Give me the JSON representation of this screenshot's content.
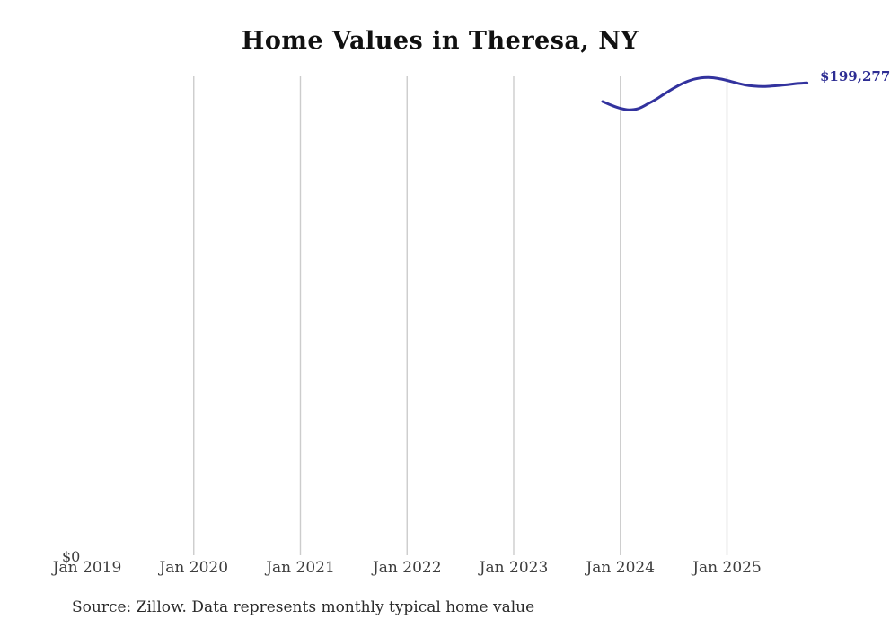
{
  "chart": {
    "title": "Home Values in Theresa, NY",
    "y_zero_label": "$0",
    "end_label": "$199,277",
    "source": "Source: Zillow. Data represents monthly typical home value",
    "colors": {
      "line": "#32329e",
      "end_label": "#2d2d93",
      "gridline": "#cccccc",
      "title": "#111111",
      "tick_text": "#3d3d3d",
      "background": "#ffffff"
    }
  },
  "chart_data": {
    "type": "line",
    "title": "Home Values in Theresa, NY",
    "xlabel": "",
    "ylabel": "",
    "ylim": [
      0,
      202000
    ],
    "grid": "vertical-only",
    "legend": "none",
    "y_axis_labels": [
      "$0"
    ],
    "end_label": "$199,277",
    "source": "Source: Zillow. Data represents monthly typical home value",
    "x_ticks": [
      {
        "label": "Jan 2019",
        "gridline": false
      },
      {
        "label": "Jan 2020",
        "gridline": true
      },
      {
        "label": "Jan 2021",
        "gridline": true
      },
      {
        "label": "Jan 2022",
        "gridline": true
      },
      {
        "label": "Jan 2023",
        "gridline": true
      },
      {
        "label": "Jan 2024",
        "gridline": true
      },
      {
        "label": "Jan 2025",
        "gridline": true
      }
    ],
    "series": [
      {
        "name": "Monthly typical home value",
        "points": [
          {
            "date": "2023-11",
            "value": 191400
          },
          {
            "date": "2023-12",
            "value": 189800
          },
          {
            "date": "2024-01",
            "value": 188500
          },
          {
            "date": "2024-02",
            "value": 187900
          },
          {
            "date": "2024-03",
            "value": 188400
          },
          {
            "date": "2024-04",
            "value": 190200
          },
          {
            "date": "2024-05",
            "value": 192300
          },
          {
            "date": "2024-06",
            "value": 194700
          },
          {
            "date": "2024-07",
            "value": 197000
          },
          {
            "date": "2024-08",
            "value": 199000
          },
          {
            "date": "2024-09",
            "value": 200500
          },
          {
            "date": "2024-10",
            "value": 201300
          },
          {
            "date": "2024-11",
            "value": 201500
          },
          {
            "date": "2024-12",
            "value": 201100
          },
          {
            "date": "2025-01",
            "value": 200300
          },
          {
            "date": "2025-02",
            "value": 199300
          },
          {
            "date": "2025-03",
            "value": 198400
          },
          {
            "date": "2025-04",
            "value": 197900
          },
          {
            "date": "2025-05",
            "value": 197700
          },
          {
            "date": "2025-06",
            "value": 197900
          },
          {
            "date": "2025-07",
            "value": 198200
          },
          {
            "date": "2025-08",
            "value": 198600
          },
          {
            "date": "2025-09",
            "value": 199000
          },
          {
            "date": "2025-10",
            "value": 199277
          }
        ]
      }
    ]
  }
}
